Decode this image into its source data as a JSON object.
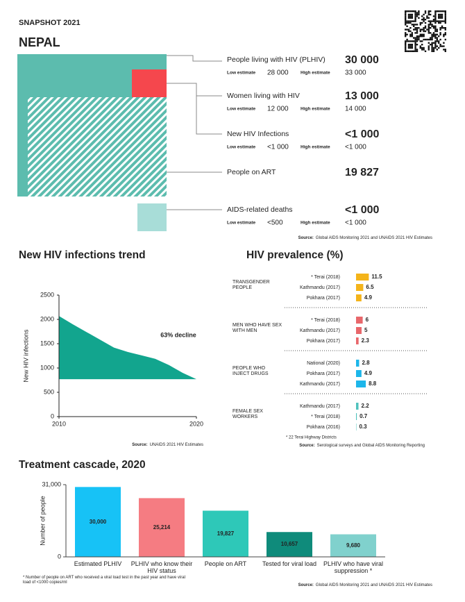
{
  "header": {
    "label": "SNAPSHOT 2021",
    "country": "NEPAL"
  },
  "snapshot": {
    "rows": [
      {
        "label": "People living with HIV (PLHIV)",
        "value": "30 000",
        "low_label": "Low estimate",
        "low": "28 000",
        "high_label": "High estimate",
        "high": "33 000"
      },
      {
        "label": "Women living with HIV",
        "value": "13 000",
        "low_label": "Low estimate",
        "low": "12 000",
        "high_label": "High estimate",
        "high": "14 000"
      },
      {
        "label": "New HIV Infections",
        "value": "<1 000",
        "low_label": "Low estimate",
        "low": "<1 000",
        "high_label": "High estimate",
        "high": "<1 000"
      },
      {
        "label": "People on ART",
        "value": "19 827"
      },
      {
        "label": "AIDS-related deaths",
        "value": "<1 000",
        "low_label": "Low estimate",
        "low": "<500",
        "high_label": "High estimate",
        "high": "<1 000"
      }
    ],
    "source_label": "Source:",
    "source": "Global AIDS Monitoring 2021 and UNAIDS 2021 HIV Estimates"
  },
  "chart_data": [
    {
      "type": "area",
      "title": "New HIV infections trend",
      "x": [
        2010,
        2011,
        2012,
        2013,
        2014,
        2015,
        2016,
        2017,
        2018,
        2019,
        2020
      ],
      "values": [
        2070,
        1900,
        1740,
        1580,
        1420,
        1330,
        1260,
        1190,
        1060,
        900,
        770
      ],
      "color": "#12a58e",
      "xlim": [
        2010,
        2020
      ],
      "xticks": [
        2010,
        2020
      ],
      "ylim": [
        0,
        2500
      ],
      "yticks": [
        0,
        500,
        1000,
        1500,
        2000,
        2500
      ],
      "ylabel": "New HIV infections",
      "annotation": "63% decline",
      "source_label": "Source:",
      "source": "UNAIDS 2021 HIV Estimates"
    },
    {
      "type": "bar",
      "orientation": "horizontal",
      "title": "HIV prevalence (%)",
      "groups": [
        {
          "name": "TRANSGENDER PEOPLE",
          "color": "#f4b41a",
          "categories": [
            "* Terai (2018)",
            "Kathmandu (2017)",
            "Pokhara (2017)"
          ],
          "values": [
            11.5,
            6.5,
            4.9
          ]
        },
        {
          "name": "MEN WHO HAVE SEX WITH MEN",
          "color": "#e8676b",
          "categories": [
            "* Terai (2018)",
            "Kathmandu (2017)",
            "Pokhara (2017)"
          ],
          "values": [
            6,
            5,
            2.3
          ]
        },
        {
          "name": "PEOPLE WHO INJECT DRUGS",
          "color": "#1db6ea",
          "categories": [
            "National (2020)",
            "Pokhara (2017)",
            "Kathmandu (2017)"
          ],
          "values": [
            2.8,
            4.9,
            8.8
          ]
        },
        {
          "name": "FEMALE SEX WORKERS",
          "color": "#4fc2bd",
          "categories": [
            "Kathmandu (2017)",
            "* Terai (2018)",
            "Pokhara (2016)"
          ],
          "values": [
            2.2,
            0.7,
            0.3
          ]
        }
      ],
      "footnote": "* 22 Terai Highway Districts",
      "source_label": "Source:",
      "source": "Serological surveys and Global AIDS Monitoring Reporting"
    },
    {
      "type": "bar",
      "orientation": "vertical",
      "title": "Treatment cascade, 2020",
      "categories": [
        "Estimated PLHIV",
        "PLHIV who know their HIV status",
        "People on ART",
        "Tested for viral load",
        "PLHIV who have viral suppression *"
      ],
      "values": [
        30000,
        25214,
        19827,
        10657,
        9680
      ],
      "value_labels": [
        "30,000",
        "25,214",
        "19,827",
        "10,657",
        "9,680"
      ],
      "colors": [
        "#17c2f6",
        "#f57c82",
        "#2ec8b8",
        "#0f8b7b",
        "#80d1cd"
      ],
      "ylim": [
        0,
        31000
      ],
      "yticks": [
        0,
        {
          "value": 31000,
          "label": "31,000"
        }
      ],
      "ylabel": "Number of people",
      "footnote": "* Number of people on ART who received a viral load test in the past year and have viral load of <1000 copies/ml",
      "source_label": "Source:",
      "source": "Global AIDS Monitoring 2021 and UNAIDS 2021 HIV Estimates"
    }
  ]
}
